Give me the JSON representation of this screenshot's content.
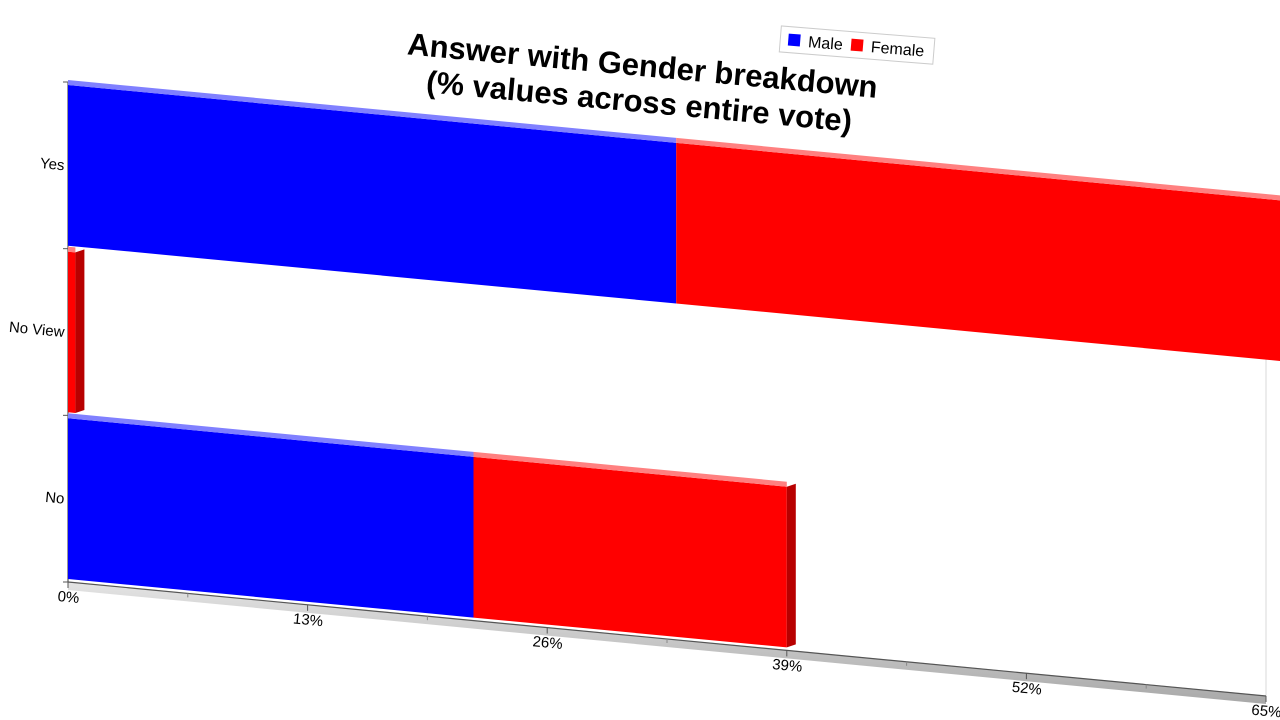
{
  "chart_data": {
    "type": "bar",
    "orientation": "horizontal",
    "stacked": true,
    "title": "Answer with Gender breakdown",
    "subtitle": "(% values across entire vote)",
    "categories": [
      "Yes",
      "No View",
      "No"
    ],
    "series": [
      {
        "name": "Male",
        "color": "#0000ff",
        "values": [
          33,
          0,
          22
        ]
      },
      {
        "name": "Female",
        "color": "#ff0000",
        "values": [
          33,
          0.4,
          17
        ]
      }
    ],
    "x_ticks": [
      "0%",
      "13%",
      "26%",
      "39%",
      "52%",
      "65%"
    ],
    "xlim": [
      0,
      65
    ],
    "xlabel": "",
    "ylabel": "",
    "legend": "top-right",
    "grid": false
  }
}
